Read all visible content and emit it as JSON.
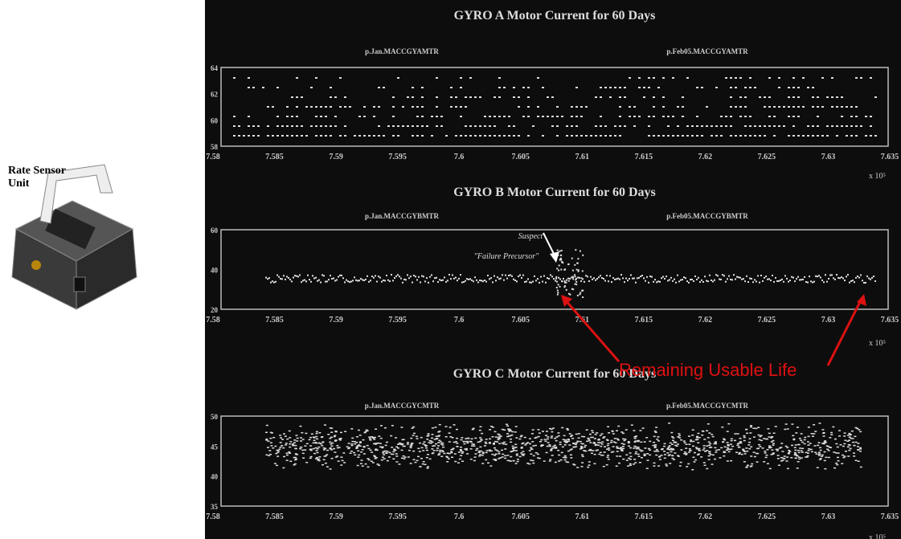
{
  "photo": {
    "label_lines": [
      "Rate Sensor",
      "Unit"
    ]
  },
  "panels": [
    {
      "title": "GYRO A Motor Current for 60 Days",
      "series_labels": [
        "p.Jan.MACCGYAMTR",
        "p.Feb05.MACCGYAMTR"
      ],
      "y_labels": [
        "64",
        "62",
        "60",
        "58"
      ],
      "x_labels": [
        "7.58",
        "7.585",
        "7.59",
        "7.595",
        "7.6",
        "7.605",
        "7.61",
        "7.615",
        "7.62",
        "7.625",
        "7.63",
        "7.635"
      ],
      "exponent": "x 10⁵"
    },
    {
      "title": "GYRO B Motor Current for 60 Days",
      "series_labels": [
        "p.Jan.MACCGYBMTR",
        "p.Feb05.MACCGYBMTR"
      ],
      "y_labels": [
        "60",
        "40",
        "20"
      ],
      "x_labels": [
        "7.58",
        "7.585",
        "7.59",
        "7.595",
        "7.6",
        "7.605",
        "7.61",
        "7.615",
        "7.62",
        "7.625",
        "7.63",
        "7.635"
      ],
      "exponent": "x 10⁵"
    },
    {
      "title": "GYRO C Motor Current for 60 Days",
      "series_labels": [
        "p.Jan.MACCGYCMTR",
        "p.Feb05.MACCGYCMTR"
      ],
      "y_labels": [
        "50",
        "45",
        "40",
        "35"
      ],
      "x_labels": [
        "7.58",
        "7.585",
        "7.59",
        "7.595",
        "7.6",
        "7.605",
        "7.61",
        "7.615",
        "7.62",
        "7.625",
        "7.63",
        "7.635"
      ],
      "exponent": "x 10⁵"
    }
  ],
  "annotations": {
    "suspect": "Suspect",
    "precursor": "\"Failure Precursor\"",
    "remaining": "Remaining Usable Life"
  }
}
